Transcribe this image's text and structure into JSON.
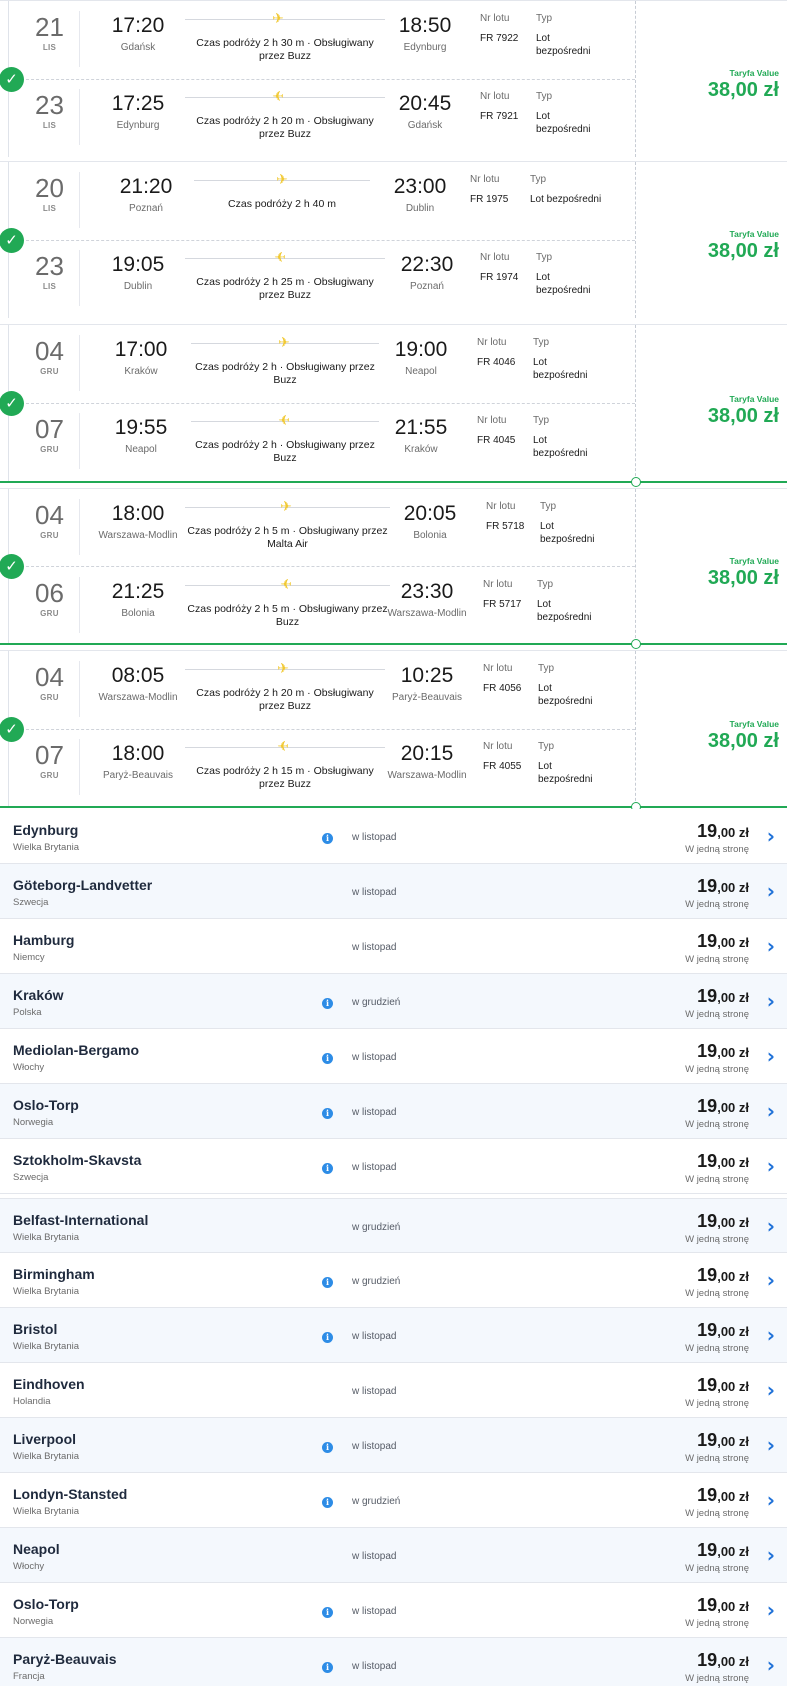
{
  "trips": [
    {
      "fare_label": "Taryfa Value",
      "fare_price": "38,00 zł",
      "legs": [
        {
          "day": "21",
          "month": "LIS",
          "dep_time": "17:20",
          "dep_city": "Gdańsk",
          "duration": "Czas podróży 2 h 30 m · Obsługiwany przez Buzz",
          "arr_time": "18:50",
          "arr_city": "Edynburg",
          "flight_label": "Nr lotu",
          "flight": "FR 7922",
          "type_label": "Typ",
          "type": "Lot bezpośredni"
        },
        {
          "day": "23",
          "month": "LIS",
          "dep_time": "17:25",
          "dep_city": "Edynburg",
          "duration": "Czas podróży 2 h 20 m · Obsługiwany przez Buzz",
          "arr_time": "20:45",
          "arr_city": "Gdańsk",
          "flight_label": "Nr lotu",
          "flight": "FR 7921",
          "type_label": "Typ",
          "type": "Lot bezpośredni"
        }
      ]
    },
    {
      "fare_label": "Taryfa Value",
      "fare_price": "38,00 zł",
      "legs": [
        {
          "day": "20",
          "month": "LIS",
          "dep_time": "21:20",
          "dep_city": "Poznań",
          "duration": "Czas podróży 2 h 40 m",
          "arr_time": "23:00",
          "arr_city": "Dublin",
          "flight_label": "Nr lotu",
          "flight": "FR 1975",
          "type_label": "Typ",
          "type": "Lot bezpośredni"
        },
        {
          "day": "23",
          "month": "LIS",
          "dep_time": "19:05",
          "dep_city": "Dublin",
          "duration": "Czas podróży 2 h 25 m · Obsługiwany przez Buzz",
          "arr_time": "22:30",
          "arr_city": "Poznań",
          "flight_label": "Nr lotu",
          "flight": "FR 1974",
          "type_label": "Typ",
          "type": "Lot bezpośredni"
        }
      ]
    },
    {
      "fare_label": "Taryfa Value",
      "fare_price": "38,00 zł",
      "legs": [
        {
          "day": "04",
          "month": "GRU",
          "dep_time": "17:00",
          "dep_city": "Kraków",
          "duration": "Czas podróży 2 h · Obsługiwany przez Buzz",
          "arr_time": "19:00",
          "arr_city": "Neapol",
          "flight_label": "Nr lotu",
          "flight": "FR 4046",
          "type_label": "Typ",
          "type": "Lot bezpośredni"
        },
        {
          "day": "07",
          "month": "GRU",
          "dep_time": "19:55",
          "dep_city": "Neapol",
          "duration": "Czas podróży 2 h · Obsługiwany przez Buzz",
          "arr_time": "21:55",
          "arr_city": "Kraków",
          "flight_label": "Nr lotu",
          "flight": "FR 4045",
          "type_label": "Typ",
          "type": "Lot bezpośredni"
        }
      ]
    },
    {
      "fare_label": "Taryfa Value",
      "fare_price": "38,00 zł",
      "legs": [
        {
          "day": "04",
          "month": "GRU",
          "dep_time": "18:00",
          "dep_city": "Warszawa-Modlin",
          "duration": "Czas podróży 2 h 5 m · Obsługiwany przez Malta Air",
          "arr_time": "20:05",
          "arr_city": "Bolonia",
          "flight_label": "Nr lotu",
          "flight": "FR 5718",
          "type_label": "Typ",
          "type": "Lot bezpośredni"
        },
        {
          "day": "06",
          "month": "GRU",
          "dep_time": "21:25",
          "dep_city": "Bolonia",
          "duration": "Czas podróży 2 h 5 m · Obsługiwany przez Buzz",
          "arr_time": "23:30",
          "arr_city": "Warszawa-Modlin",
          "flight_label": "Nr lotu",
          "flight": "FR 5717",
          "type_label": "Typ",
          "type": "Lot bezpośredni"
        }
      ]
    },
    {
      "fare_label": "Taryfa Value",
      "fare_price": "38,00 zł",
      "legs": [
        {
          "day": "04",
          "month": "GRU",
          "dep_time": "08:05",
          "dep_city": "Warszawa-Modlin",
          "duration": "Czas podróży 2 h 20 m · Obsługiwany przez Buzz",
          "arr_time": "10:25",
          "arr_city": "Paryż-Beauvais",
          "flight_label": "Nr lotu",
          "flight": "FR 4056",
          "type_label": "Typ",
          "type": "Lot bezpośredni"
        },
        {
          "day": "07",
          "month": "GRU",
          "dep_time": "18:00",
          "dep_city": "Paryż-Beauvais",
          "duration": "Czas podróży 2 h 15 m · Obsługiwany przez Buzz",
          "arr_time": "20:15",
          "arr_city": "Warszawa-Modlin",
          "flight_label": "Nr lotu",
          "flight": "FR 4055",
          "type_label": "Typ",
          "type": "Lot bezpośredni"
        }
      ]
    }
  ],
  "destinations": [
    {
      "city": "Edynburg",
      "country": "Wielka Brytania",
      "info": true,
      "month": "w listopad",
      "price_int": "19",
      "price_dec": ",00 zł",
      "direction": "W jedną stronę"
    },
    {
      "city": "Göteborg-Landvetter",
      "country": "Szwecja",
      "info": false,
      "month": "w listopad",
      "price_int": "19",
      "price_dec": ",00 zł",
      "direction": "W jedną stronę"
    },
    {
      "city": "Hamburg",
      "country": "Niemcy",
      "info": false,
      "month": "w listopad",
      "price_int": "19",
      "price_dec": ",00 zł",
      "direction": "W jedną stronę"
    },
    {
      "city": "Kraków",
      "country": "Polska",
      "info": true,
      "month": "w grudzień",
      "price_int": "19",
      "price_dec": ",00 zł",
      "direction": "W jedną stronę"
    },
    {
      "city": "Mediolan-Bergamo",
      "country": "Włochy",
      "info": true,
      "month": "w listopad",
      "price_int": "19",
      "price_dec": ",00 zł",
      "direction": "W jedną stronę"
    },
    {
      "city": "Oslo-Torp",
      "country": "Norwegia",
      "info": true,
      "month": "w listopad",
      "price_int": "19",
      "price_dec": ",00 zł",
      "direction": "W jedną stronę"
    },
    {
      "city": "Sztokholm-Skavsta",
      "country": "Szwecja",
      "info": true,
      "month": "w listopad",
      "price_int": "19",
      "price_dec": ",00 zł",
      "direction": "W jedną stronę"
    },
    {
      "city": "Belfast-International",
      "country": "Wielka Brytania",
      "info": false,
      "month": "w grudzień",
      "price_int": "19",
      "price_dec": ",00 zł",
      "direction": "W jedną stronę"
    },
    {
      "city": "Birmingham",
      "country": "Wielka Brytania",
      "info": true,
      "month": "w grudzień",
      "price_int": "19",
      "price_dec": ",00 zł",
      "direction": "W jedną stronę"
    },
    {
      "city": "Bristol",
      "country": "Wielka Brytania",
      "info": true,
      "month": "w listopad",
      "price_int": "19",
      "price_dec": ",00 zł",
      "direction": "W jedną stronę"
    },
    {
      "city": "Eindhoven",
      "country": "Holandia",
      "info": false,
      "month": "w listopad",
      "price_int": "19",
      "price_dec": ",00 zł",
      "direction": "W jedną stronę"
    },
    {
      "city": "Liverpool",
      "country": "Wielka Brytania",
      "info": true,
      "month": "w listopad",
      "price_int": "19",
      "price_dec": ",00 zł",
      "direction": "W jedną stronę"
    },
    {
      "city": "Londyn-Stansted",
      "country": "Wielka Brytania",
      "info": true,
      "month": "w grudzień",
      "price_int": "19",
      "price_dec": ",00 zł",
      "direction": "W jedną stronę"
    },
    {
      "city": "Neapol",
      "country": "Włochy",
      "info": false,
      "month": "w listopad",
      "price_int": "19",
      "price_dec": ",00 zł",
      "direction": "W jedną stronę"
    },
    {
      "city": "Oslo-Torp",
      "country": "Norwegia",
      "info": true,
      "month": "w listopad",
      "price_int": "19",
      "price_dec": ",00 zł",
      "direction": "W jedną stronę"
    },
    {
      "city": "Paryż-Beauvais",
      "country": "Francja",
      "info": true,
      "month": "w listopad",
      "price_int": "19",
      "price_dec": ",00 zł",
      "direction": "W jedną stronę"
    }
  ],
  "colors": {
    "accent_green": "#21a955",
    "plane_yellow": "#f1c933",
    "link_blue": "#1f71d8",
    "info_blue": "#2d8ce6"
  }
}
